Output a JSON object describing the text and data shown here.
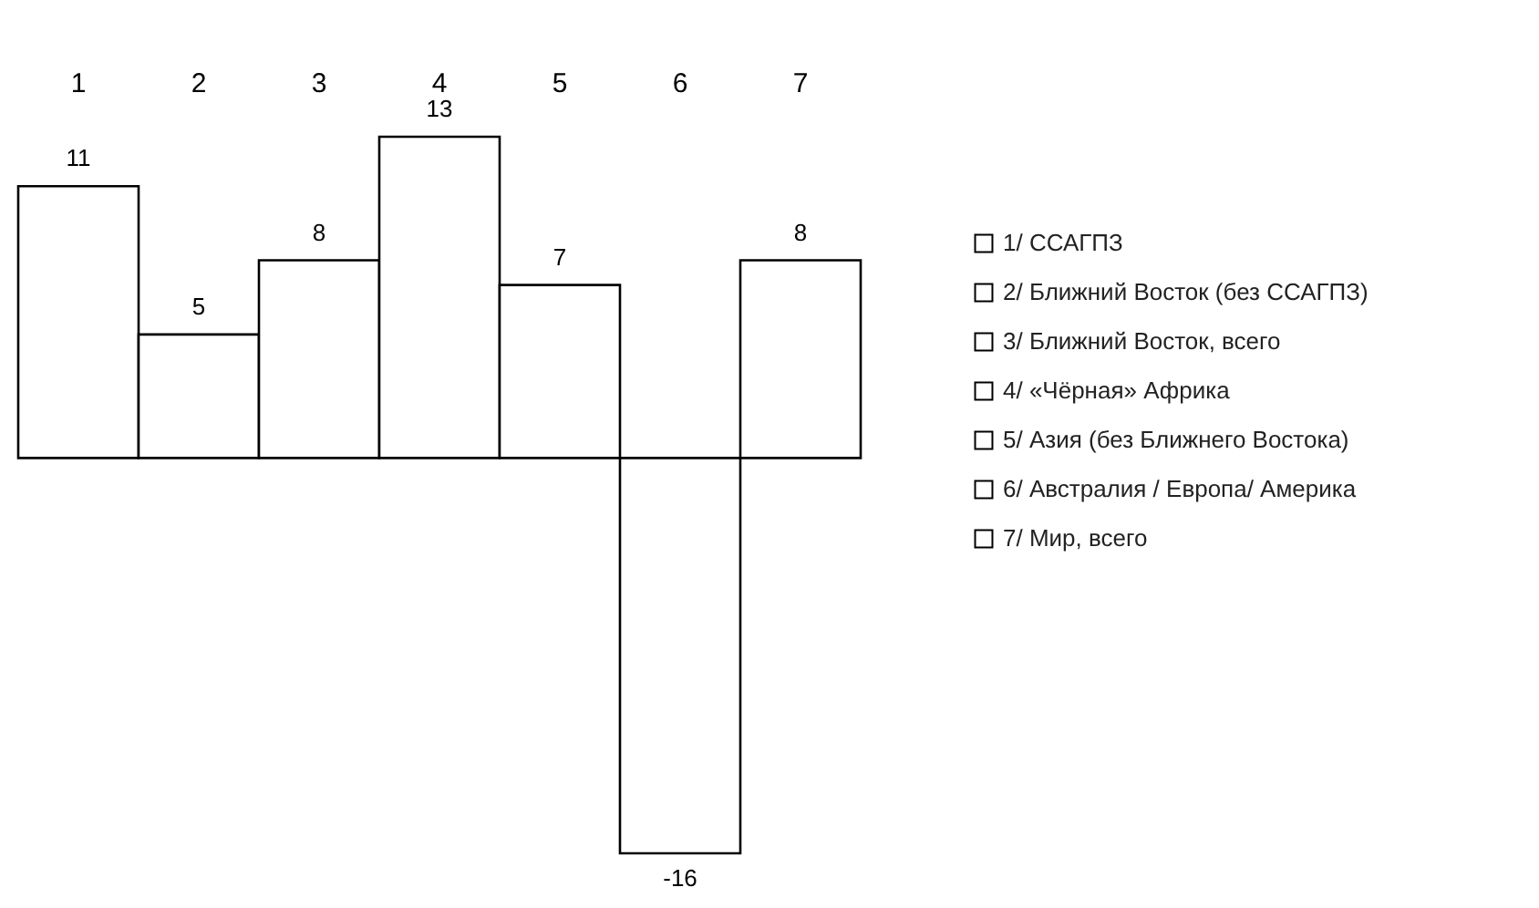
{
  "chart_data": {
    "type": "bar",
    "stacked": true,
    "data_labels": true,
    "legend": "right",
    "categories": [
      "1",
      "2",
      "3",
      "4",
      "5",
      "6",
      "7"
    ],
    "series": [
      {
        "name": "1/ ССАГПЗ",
        "color": "#ffffff",
        "values": [
          11,
          null,
          null,
          null,
          null,
          null,
          null
        ]
      },
      {
        "name": "2/ Ближний Восток (без ССАГПЗ)",
        "color": "#ffffff",
        "values": [
          null,
          5,
          null,
          null,
          null,
          null,
          null
        ]
      },
      {
        "name": "3/ Ближний Восток, всего",
        "color": "#ffffff",
        "values": [
          null,
          null,
          8,
          null,
          null,
          null,
          null
        ]
      },
      {
        "name": "4/ «Чёрная» Африка",
        "color": "#ffffff",
        "values": [
          null,
          null,
          null,
          13,
          null,
          null,
          null
        ]
      },
      {
        "name": "5/ Азия (без Ближнего Востока)",
        "color": "#ffffff",
        "values": [
          null,
          null,
          null,
          null,
          7,
          null,
          null
        ]
      },
      {
        "name": "6/ Австралия / Европа/ Америка",
        "color": "#ffffff",
        "values": [
          null,
          null,
          null,
          null,
          null,
          -16,
          null
        ]
      },
      {
        "name": "7/ Мир, всего",
        "color": "#ffffff",
        "values": [
          null,
          null,
          null,
          null,
          null,
          null,
          8
        ]
      }
    ]
  }
}
